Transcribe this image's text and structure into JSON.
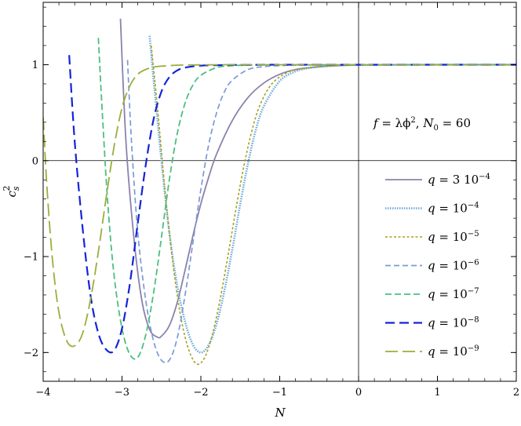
{
  "chart_data": {
    "type": "line",
    "xlabel": "N",
    "ylabel": "c",
    "ylabel_sub": "s",
    "ylabel_sup": "2",
    "xlim": [
      -4,
      2
    ],
    "ylim": [
      -2.3,
      1.65
    ],
    "x_ticks": [
      -4,
      -3,
      -2,
      -1,
      0,
      1,
      2
    ],
    "x_tick_labels": [
      "−4",
      "−3",
      "−2",
      "−1",
      "0",
      "1",
      "2"
    ],
    "y_ticks": [
      -2,
      -1,
      0,
      1
    ],
    "y_tick_labels": [
      "−2",
      "−1",
      "0",
      "1"
    ],
    "reference_lines": {
      "x": 0,
      "y": 0
    },
    "annotation": {
      "f_part": "f",
      "eq_part": " = λϕ",
      "exp_part": "2",
      "sep_part": ",    ",
      "n_part": "N",
      "n_sub": "0",
      "n_val": " = 60"
    },
    "legend_placement": "right",
    "series": [
      {
        "name": "q = 3 10",
        "name_var": "q",
        "name_rest": " = 3 10",
        "name_exp": "−4",
        "color": "#8b82ad",
        "dash": "",
        "width": 1.8,
        "x": [
          -3.02,
          -2.95,
          -2.85,
          -2.75,
          -2.65,
          -2.55,
          -2.5,
          -2.4,
          -2.3,
          -2.2,
          -2.1,
          -2.0,
          -1.9,
          -1.8,
          -1.6,
          -1.4,
          -1.2,
          -1.0,
          -0.8,
          -0.6,
          -0.4,
          -0.2,
          0,
          1,
          2
        ],
        "y": [
          1.48,
          0.2,
          -0.8,
          -1.45,
          -1.76,
          -1.84,
          -1.83,
          -1.72,
          -1.48,
          -1.14,
          -0.78,
          -0.45,
          -0.17,
          0.07,
          0.42,
          0.66,
          0.81,
          0.9,
          0.95,
          0.97,
          0.985,
          0.993,
          0.997,
          1.0,
          1.0
        ]
      },
      {
        "name": "q = 10",
        "name_var": "q",
        "name_rest": " = 10",
        "name_exp": "−4",
        "color": "#6aa9d8",
        "dash": "1.5 1.5",
        "width": 2.6,
        "x": [
          -2.65,
          -2.6,
          -2.5,
          -2.4,
          -2.3,
          -2.2,
          -2.1,
          -2.0,
          -1.9,
          -1.8,
          -1.7,
          -1.6,
          -1.5,
          -1.4,
          -1.3,
          -1.2,
          -1.0,
          -0.8,
          -0.6,
          -0.4,
          -0.2,
          0,
          1,
          2
        ],
        "y": [
          1.3,
          0.85,
          0.0,
          -0.75,
          -1.3,
          -1.68,
          -1.92,
          -2.0,
          -1.92,
          -1.7,
          -1.35,
          -0.92,
          -0.45,
          -0.02,
          0.33,
          0.57,
          0.83,
          0.93,
          0.97,
          0.985,
          0.993,
          0.997,
          1.0,
          1.0
        ]
      },
      {
        "name": "q = 10",
        "name_var": "q",
        "name_rest": " = 10",
        "name_exp": "−5",
        "color": "#a8a01e",
        "dash": "3 2.5",
        "width": 1.6,
        "x": [
          -2.63,
          -2.55,
          -2.45,
          -2.35,
          -2.25,
          -2.15,
          -2.05,
          -1.95,
          -1.85,
          -1.75,
          -1.65,
          -1.55,
          -1.45,
          -1.35,
          -1.25,
          -1.1,
          -0.9,
          -0.7,
          -0.5,
          -0.3,
          -0.1,
          0,
          1,
          2
        ],
        "y": [
          1.2,
          0.55,
          -0.35,
          -1.1,
          -1.65,
          -1.98,
          -2.12,
          -2.05,
          -1.8,
          -1.42,
          -0.96,
          -0.48,
          -0.04,
          0.32,
          0.58,
          0.8,
          0.92,
          0.96,
          0.98,
          0.99,
          0.995,
          0.998,
          1.0,
          1.0
        ]
      },
      {
        "name": "q = 10",
        "name_var": "q",
        "name_rest": " = 10",
        "name_exp": "−6",
        "color": "#7a9ad8",
        "dash": "7 4",
        "width": 1.7,
        "x": [
          -2.93,
          -2.88,
          -2.8,
          -2.7,
          -2.6,
          -2.5,
          -2.4,
          -2.3,
          -2.2,
          -2.1,
          -2.0,
          -1.9,
          -1.8,
          -1.7,
          -1.6,
          -1.4,
          -1.2,
          -1.0,
          -0.8,
          -0.6,
          -0.4,
          -0.2,
          0,
          1,
          2
        ],
        "y": [
          1.05,
          0.2,
          -0.75,
          -1.45,
          -1.88,
          -2.08,
          -2.08,
          -1.85,
          -1.4,
          -0.85,
          -0.3,
          0.17,
          0.5,
          0.72,
          0.84,
          0.95,
          0.98,
          0.99,
          0.995,
          0.997,
          0.998,
          0.999,
          1.0,
          1.0,
          1.0
        ]
      },
      {
        "name": "q = 10",
        "name_var": "q",
        "name_rest": " = 10",
        "name_exp": "−7",
        "color": "#4cbf80",
        "dash": "8 4",
        "width": 1.8,
        "x": [
          -3.3,
          -3.25,
          -3.18,
          -3.1,
          -3.0,
          -2.9,
          -2.8,
          -2.7,
          -2.6,
          -2.5,
          -2.4,
          -2.3,
          -2.2,
          -2.1,
          -2.0,
          -1.8,
          -1.6,
          -1.4,
          -1.2,
          -1.0,
          -0.8,
          -0.5,
          0,
          1,
          2
        ],
        "y": [
          1.28,
          0.5,
          -0.45,
          -1.2,
          -1.75,
          -2.02,
          -2.05,
          -1.82,
          -1.38,
          -0.8,
          -0.2,
          0.28,
          0.6,
          0.79,
          0.89,
          0.97,
          0.99,
          0.995,
          0.997,
          0.998,
          0.999,
          1.0,
          1.0,
          1.0,
          1.0
        ]
      },
      {
        "name": "q = 10",
        "name_var": "q",
        "name_rest": " = 10",
        "name_exp": "−8",
        "color": "#1524d8",
        "dash": "12 6",
        "width": 2.2,
        "x": [
          -3.67,
          -3.6,
          -3.5,
          -3.4,
          -3.3,
          -3.2,
          -3.1,
          -3.0,
          -2.9,
          -2.8,
          -2.7,
          -2.6,
          -2.5,
          -2.4,
          -2.3,
          -2.2,
          -2.0,
          -1.8,
          -1.6,
          -1.4,
          -1.0,
          -0.5,
          0,
          1,
          2
        ],
        "y": [
          1.1,
          0.2,
          -0.7,
          -1.4,
          -1.8,
          -1.97,
          -1.98,
          -1.75,
          -1.28,
          -0.65,
          -0.05,
          0.43,
          0.72,
          0.87,
          0.94,
          0.97,
          0.99,
          0.995,
          0.998,
          0.999,
          1.0,
          1.0,
          1.0,
          1.0,
          1.0
        ]
      },
      {
        "name": "q = 10",
        "name_var": "q",
        "name_rest": " = 10",
        "name_exp": "−9",
        "color": "#9aae3c",
        "dash": "16 6",
        "width": 1.8,
        "x": [
          -4.0,
          -3.95,
          -3.88,
          -3.8,
          -3.7,
          -3.6,
          -3.5,
          -3.4,
          -3.3,
          -3.2,
          -3.1,
          -3.0,
          -2.9,
          -2.8,
          -2.7,
          -2.6,
          -2.5,
          -2.3,
          -2.1,
          -1.9,
          -1.5,
          -1.0,
          0,
          1,
          2
        ],
        "y": [
          0.45,
          -0.3,
          -1.05,
          -1.58,
          -1.88,
          -1.93,
          -1.8,
          -1.45,
          -0.95,
          -0.38,
          0.15,
          0.55,
          0.78,
          0.9,
          0.95,
          0.975,
          0.985,
          0.995,
          0.998,
          0.999,
          1.0,
          1.0,
          1.0,
          1.0,
          1.0
        ]
      }
    ]
  }
}
